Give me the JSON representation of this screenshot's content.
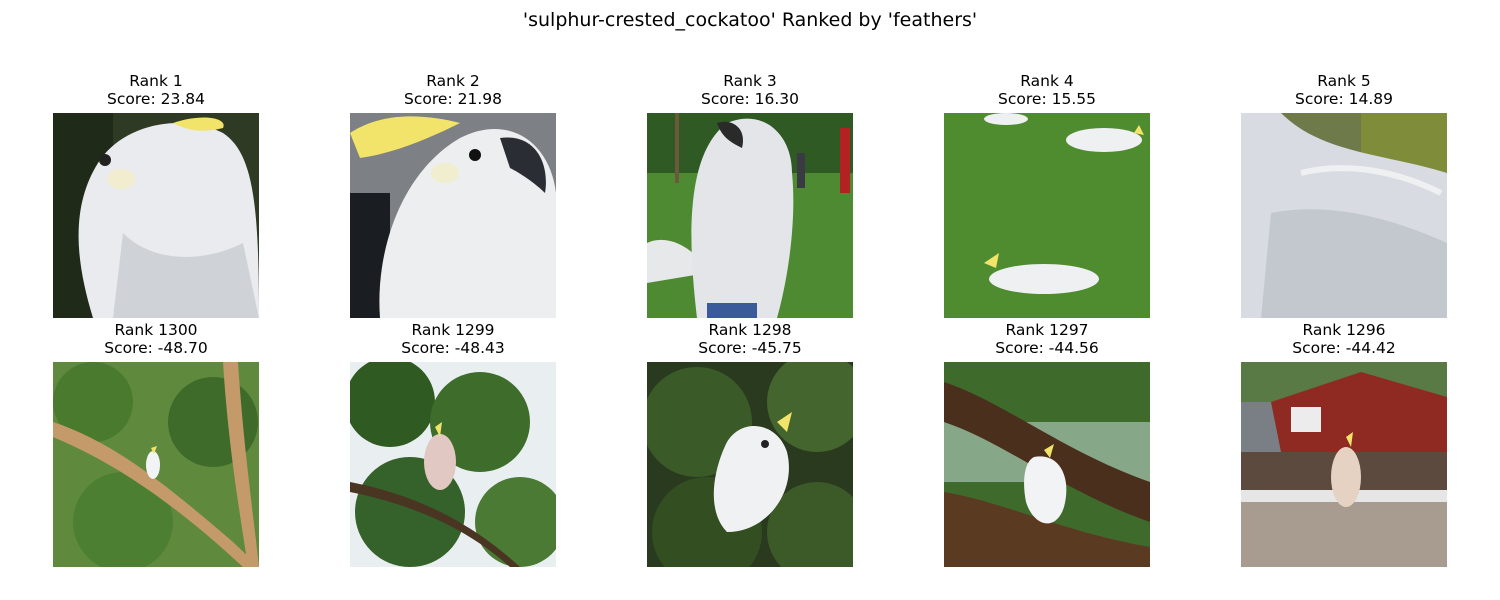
{
  "title": "'sulphur-crested_cockatoo' Ranked by 'feathers'",
  "top_row": [
    {
      "rank": "Rank 1",
      "score": "Score: 23.84"
    },
    {
      "rank": "Rank 2",
      "score": "Score: 21.98"
    },
    {
      "rank": "Rank 3",
      "score": "Score: 16.30"
    },
    {
      "rank": "Rank 4",
      "score": "Score: 15.55"
    },
    {
      "rank": "Rank 5",
      "score": "Score: 14.89"
    }
  ],
  "bottom_row": [
    {
      "rank": "Rank 1300",
      "score": "Score: -48.70"
    },
    {
      "rank": "Rank 1299",
      "score": "Score: -48.43"
    },
    {
      "rank": "Rank 1298",
      "score": "Score: -45.75"
    },
    {
      "rank": "Rank 1297",
      "score": "Score: -44.56"
    },
    {
      "rank": "Rank 1296",
      "score": "Score: -44.42"
    }
  ],
  "colors": {
    "cockatoo_white": "#eceef0",
    "crest_yellow": "#f2e36a",
    "grass_green": "#4e8a32",
    "foliage_green": "#3f6b2a",
    "branch_brown": "#5b3a22",
    "roof_red": "#8e2a22"
  }
}
